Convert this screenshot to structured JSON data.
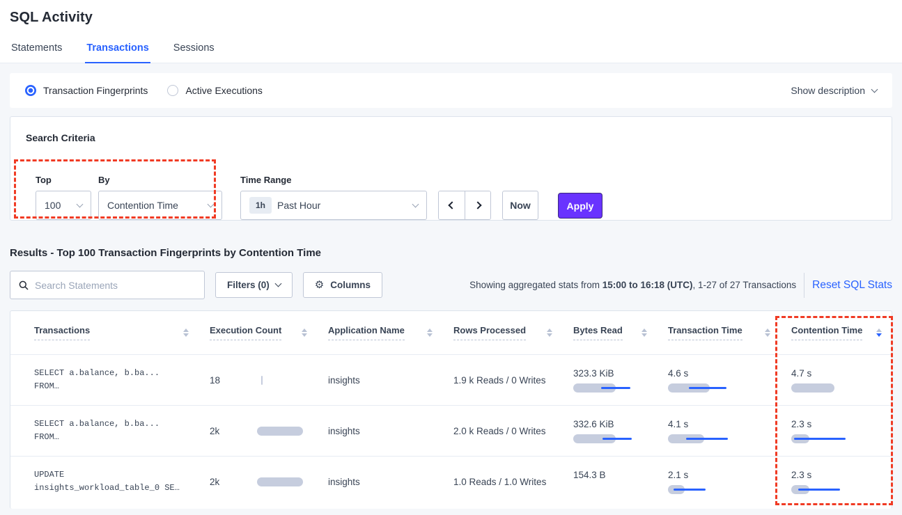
{
  "page_title": "SQL Activity",
  "tabs": [
    {
      "label": "Statements",
      "active": false
    },
    {
      "label": "Transactions",
      "active": true
    },
    {
      "label": "Sessions",
      "active": false
    }
  ],
  "view_toggle": {
    "options": [
      {
        "label": "Transaction Fingerprints",
        "selected": true
      },
      {
        "label": "Active Executions",
        "selected": false
      }
    ],
    "show_description_label": "Show description"
  },
  "search_criteria": {
    "title": "Search Criteria",
    "top_label": "Top",
    "top_value": "100",
    "by_label": "By",
    "by_value": "Contention Time",
    "time_range_label": "Time Range",
    "time_range_badge": "1h",
    "time_range_value": "Past Hour",
    "now_label": "Now",
    "apply_label": "Apply"
  },
  "results": {
    "heading": "Results - Top 100 Transaction Fingerprints by Contention Time",
    "search_placeholder": "Search Statements",
    "filters_label": "Filters (0)",
    "columns_label": "Columns",
    "stats_prefix": "Showing aggregated stats from ",
    "stats_bold": "15:00 to 16:18 (UTC)",
    "stats_suffix": ", 1-27 of 27 Transactions",
    "reset_label": "Reset SQL Stats"
  },
  "table": {
    "headers": [
      "Transactions",
      "Execution Count",
      "Application Name",
      "Rows Processed",
      "Bytes Read",
      "Transaction Time",
      "Contention Time"
    ],
    "sort": {
      "column": "Contention Time",
      "direction": "desc"
    },
    "rows": [
      {
        "query_line1": "SELECT a.balance, b.ba...",
        "query_line2": "FROM…",
        "execution_count": "18",
        "application_name": "insights",
        "rows_processed": "1.9 k Reads / 0 Writes",
        "bytes_read": "323.3 KiB",
        "transaction_time": "4.6 s",
        "contention_time": "4.7 s",
        "bars": {
          "exec_l": 6,
          "exec_w": 2,
          "bytes_w": 61,
          "bytes_line_l": 40,
          "bytes_line_w": 42,
          "txn_w": 60,
          "txn_line_l": 30,
          "txn_line_w": 54,
          "cont_w": 62
        }
      },
      {
        "query_line1": "SELECT a.balance, b.ba...",
        "query_line2": "FROM…",
        "execution_count": "2k",
        "application_name": "insights",
        "rows_processed": "2.0 k Reads / 0 Writes",
        "bytes_read": "332.6 KiB",
        "transaction_time": "4.1 s",
        "contention_time": "2.3 s",
        "bars": {
          "exec_l": 0,
          "exec_w": 66,
          "bytes_w": 61,
          "bytes_line_l": 42,
          "bytes_line_w": 42,
          "txn_w": 52,
          "txn_line_l": 26,
          "txn_line_w": 60,
          "cont_w": 26,
          "cont_line_l": 4,
          "cont_line_w": 74
        }
      },
      {
        "query_line1": "UPDATE",
        "query_line2": "insights_workload_table_0 SE…",
        "execution_count": "2k",
        "application_name": "insights",
        "rows_processed": "1.0 Reads / 1.0 Writes",
        "bytes_read": "154.3 B",
        "transaction_time": "2.1 s",
        "contention_time": "2.3 s",
        "bars": {
          "exec_l": 0,
          "exec_w": 66,
          "txn_w": 24,
          "txn_line_l": 8,
          "txn_line_w": 46,
          "cont_w": 26,
          "cont_line_l": 10,
          "cont_line_w": 60
        }
      }
    ]
  },
  "colors": {
    "accent_blue": "#2962ff",
    "apply_purple": "#6933ff",
    "annotation_red": "#f03b24",
    "bar_gray": "#c6cdde"
  }
}
